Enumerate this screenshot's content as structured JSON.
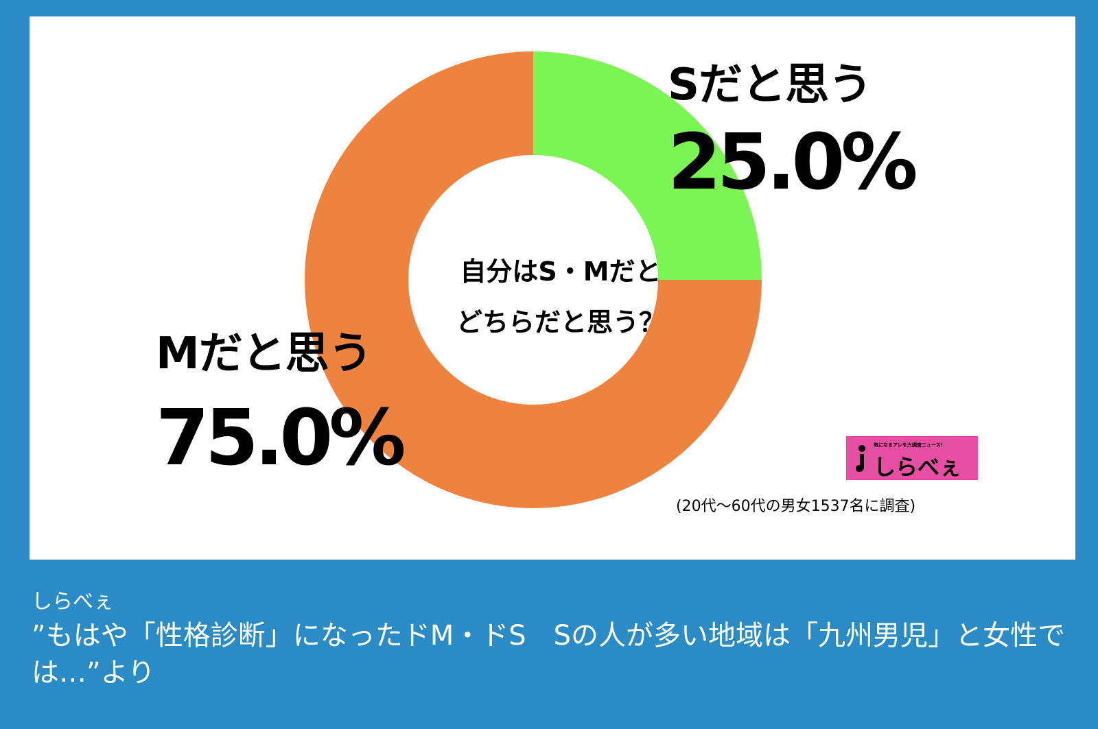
{
  "chart_data": {
    "type": "pie",
    "donut": true,
    "title": "自分はS・Mだと\nどちらだと思う？",
    "slices": [
      {
        "label": "Sだと思う",
        "value": 25.0,
        "value_label": "25.0%",
        "color": "#7af553"
      },
      {
        "label": "Mだと思う",
        "value": 75.0,
        "value_label": "75.0%",
        "color": "#ee823f"
      }
    ],
    "note": "(20代〜60代の男女1537名に調査)"
  },
  "brand": {
    "tagline": "気になるアレを大調査ニュース！",
    "name": "しらべぇ",
    "color": "#e54ea2"
  },
  "footer": {
    "source": "しらべぇ",
    "title": "”もはや「性格診断」になったドM・ドS　Sの人が多い地域は「九州男児」と女性では…”より"
  },
  "colors": {
    "background": "#2b8bc7",
    "card": "#ffffff"
  }
}
